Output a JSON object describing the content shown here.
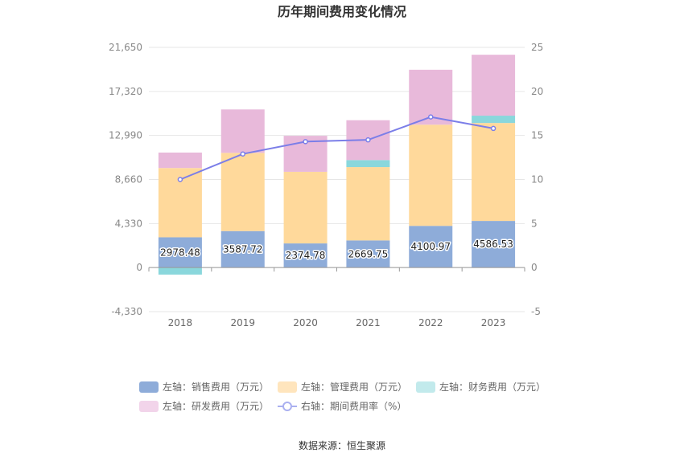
{
  "chart_data": {
    "type": "bar",
    "title": "历年期间费用变化情况",
    "categories": [
      "2018",
      "2019",
      "2020",
      "2021",
      "2022",
      "2023"
    ],
    "series": [
      {
        "name": "左轴：销售费用（万元）",
        "axis": "left",
        "kind": "bar",
        "color": "#8eacd9",
        "values": [
          2978.48,
          3587.72,
          2374.78,
          2669.75,
          4100.97,
          4586.53
        ]
      },
      {
        "name": "左轴：管理费用（万元）",
        "axis": "left",
        "kind": "bar",
        "color": "#ffd99b",
        "values": [
          6810,
          7690,
          7040,
          7210,
          9950,
          9630
        ]
      },
      {
        "name": "左轴：财务费用（万元）",
        "axis": "left",
        "kind": "bar",
        "color": "#8ad7dc",
        "values": [
          -690,
          0,
          0,
          690,
          0,
          720
        ]
      },
      {
        "name": "左轴：研发费用（万元）",
        "axis": "left",
        "kind": "bar",
        "color": "#e8b9da",
        "values": [
          1520,
          4270,
          3540,
          3920,
          5400,
          5990
        ]
      },
      {
        "name": "右轴：期间费用率（%）",
        "axis": "right",
        "kind": "line",
        "color": "#7b7ee8",
        "values": [
          10.0,
          12.9,
          14.3,
          14.5,
          17.1,
          15.8
        ]
      }
    ],
    "left_axis": {
      "min": -4330,
      "max": 21650,
      "ticks": [
        "-4,330",
        "0",
        "4,330",
        "8,660",
        "12,990",
        "17,320",
        "21,650"
      ]
    },
    "right_axis": {
      "min": -5,
      "max": 25,
      "ticks": [
        "-5",
        "0",
        "5",
        "10",
        "15",
        "20",
        "25"
      ]
    },
    "grid": true,
    "legend_position": "bottom",
    "legend_colors": [
      "#8eacd9",
      "#ffe5bd",
      "#c2eaec",
      "#f2d4ea",
      "#aab0f0"
    ]
  },
  "source_text": "数据来源：恒生聚源"
}
